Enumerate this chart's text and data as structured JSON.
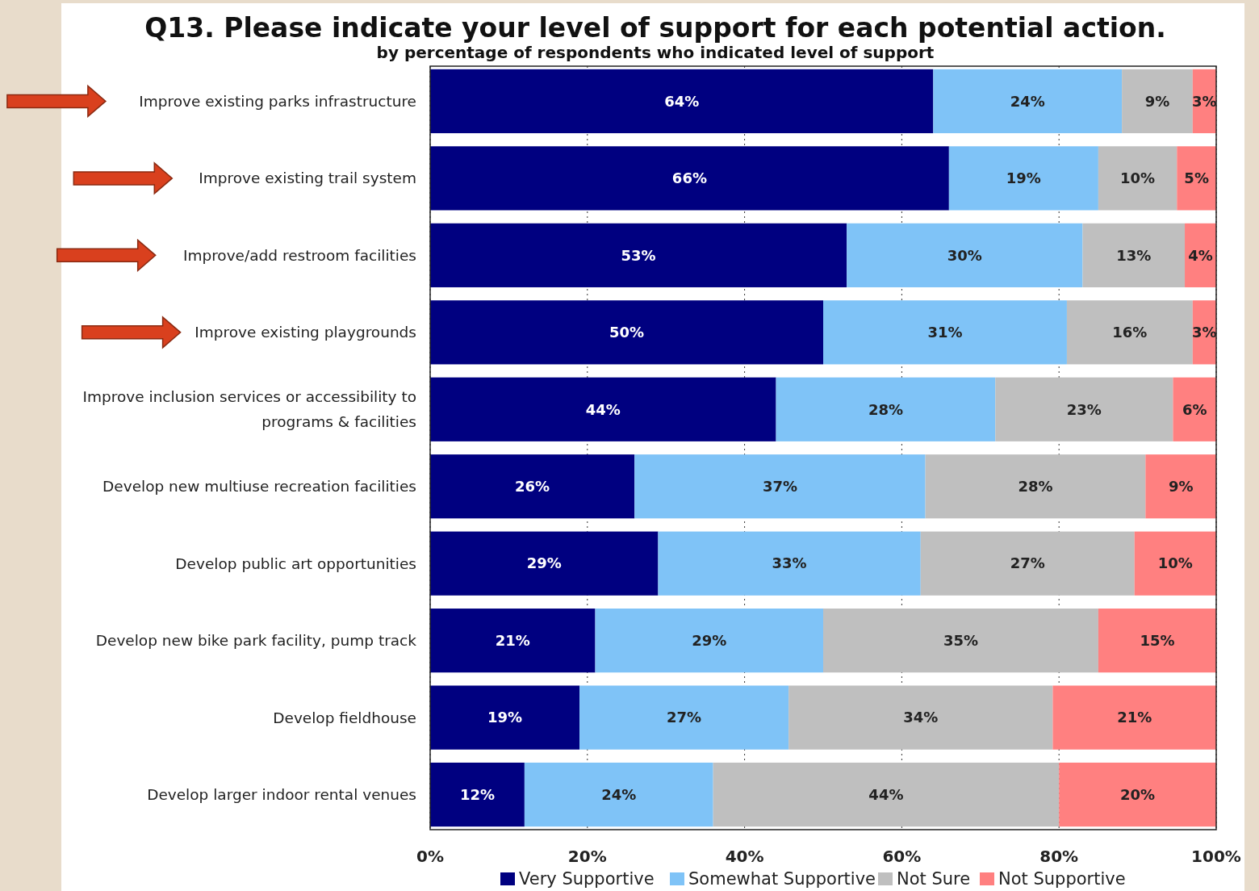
{
  "chart_data": {
    "type": "bar",
    "orientation": "horizontal",
    "stacked": true,
    "title": "Q13.  Please indicate your level of support for each potential action.",
    "subtitle": "by percentage of respondents who indicated level of support",
    "categories": [
      "Improve existing parks infrastructure",
      "Improve existing trail system",
      "Improve/add restroom facilities",
      "Improve existing playgrounds",
      "Improve inclusion services or accessibility to programs & facilities",
      "Develop new multiuse recreation facilities",
      "Develop public art opportunities",
      "Develop new bike park facility, pump track",
      "Develop fieldhouse",
      "Develop larger indoor rental venues"
    ],
    "series": [
      {
        "name": "Very Supportive",
        "color": "#000080",
        "values": [
          64,
          66,
          53,
          50,
          44,
          26,
          29,
          21,
          19,
          12
        ],
        "value_labels": [
          "64%",
          "66%",
          "53%",
          "50%",
          "44%",
          "26%",
          "29%",
          "21%",
          "19%",
          "12%"
        ]
      },
      {
        "name": "Somewhat Supportive",
        "color": "#7fc3f7",
        "values": [
          24,
          19,
          30,
          31,
          27.9,
          37,
          33.4,
          29,
          26.6,
          24
        ],
        "value_labels": [
          "24%",
          "19%",
          "30%",
          "31%",
          "28%",
          "37%",
          "33%",
          "29%",
          "27%",
          "24%"
        ]
      },
      {
        "name": "Not Sure",
        "color": "#bfbfbf",
        "values": [
          9,
          10,
          13,
          16,
          22.6,
          28,
          27.2,
          35,
          33.6,
          44
        ],
        "value_labels": [
          "9%",
          "10%",
          "13%",
          "16%",
          "23%",
          "28%",
          "27%",
          "35%",
          "34%",
          "44%"
        ]
      },
      {
        "name": "Not Supportive",
        "color": "#ff8080",
        "values": [
          3,
          5,
          4,
          3,
          5.5,
          9,
          10.4,
          15,
          20.8,
          20
        ],
        "value_labels": [
          "3%",
          "5%",
          "4%",
          "3%",
          "6%",
          "9%",
          "10%",
          "15%",
          "21%",
          "20%"
        ]
      }
    ],
    "xlim": [
      0,
      100
    ],
    "xticks": [
      {
        "value": 0,
        "label": "0%"
      },
      {
        "value": 20,
        "label": "20%"
      },
      {
        "value": 40,
        "label": "40%"
      },
      {
        "value": 60,
        "label": "60%"
      },
      {
        "value": 80,
        "label": "80%"
      },
      {
        "value": 100,
        "label": "100%"
      }
    ],
    "grid": "x",
    "legend": "bottom"
  }
}
